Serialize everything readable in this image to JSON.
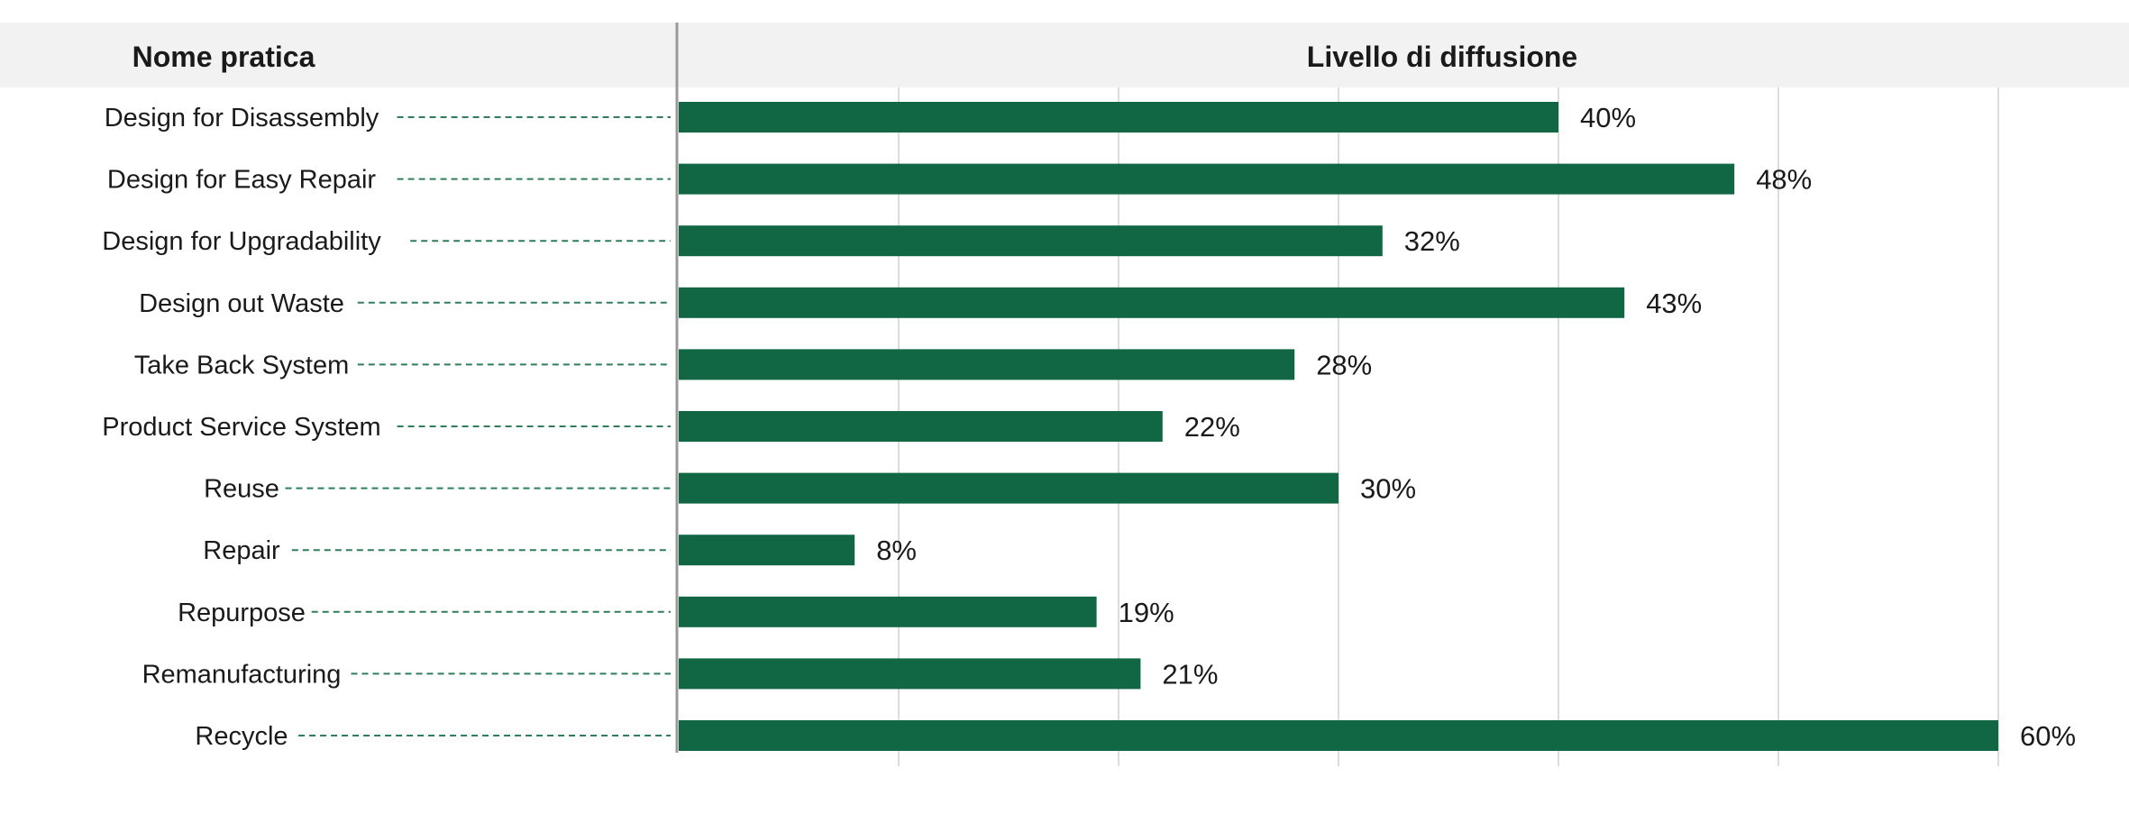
{
  "chart_data": {
    "type": "bar",
    "orientation": "horizontal",
    "header_left": "Nome pratica",
    "header_right": "Livello di diffusione",
    "categories": [
      "Design for Disassembly",
      "Design for Easy Repair",
      "Design for Upgradability",
      "Design out Waste",
      "Take Back System",
      "Product Service System",
      "Reuse",
      "Repair",
      "Repurpose",
      "Remanufacturing",
      "Recycle"
    ],
    "values": [
      40,
      48,
      32,
      43,
      28,
      22,
      30,
      8,
      19,
      21,
      60
    ],
    "value_labels": [
      "40%",
      "48%",
      "32%",
      "43%",
      "28%",
      "22%",
      "30%",
      "8%",
      "19%",
      "21%",
      "60%"
    ],
    "unit": "%",
    "xlim": [
      0,
      60
    ],
    "grid": true,
    "grid_step": 10,
    "bar_color": "#116644",
    "header_bg": "#f2f2f2",
    "leader_line_color": "#2e7d5b"
  }
}
